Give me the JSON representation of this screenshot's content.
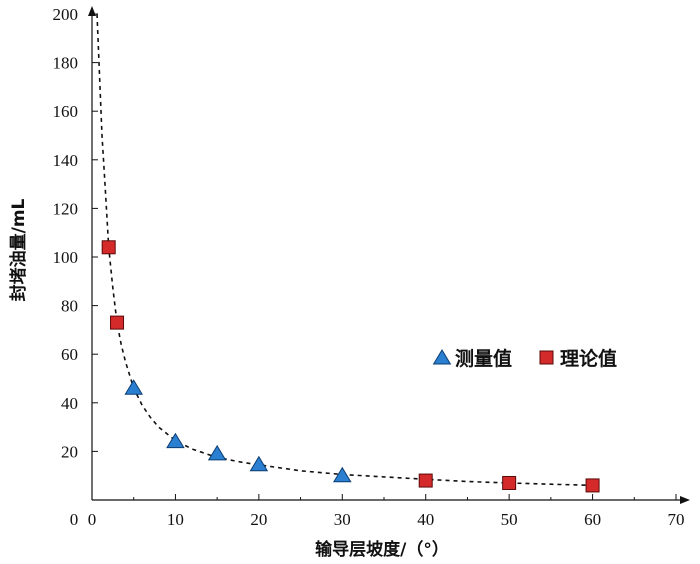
{
  "chart_data": {
    "type": "scatter",
    "xlabel": "输导层坡度/（°）",
    "ylabel": "封堵油量/mL",
    "xlim": [
      0,
      70
    ],
    "ylim": [
      0,
      200
    ],
    "xticks": [
      0,
      10,
      20,
      30,
      40,
      50,
      60,
      70
    ],
    "yticks": [
      20,
      40,
      60,
      80,
      100,
      120,
      140,
      160,
      180,
      200
    ],
    "grid": false,
    "legend_position": "right-middle",
    "series": [
      {
        "name": "测量值",
        "marker": "triangle",
        "color": "#2a7fd0",
        "x": [
          5,
          10,
          15,
          20,
          30
        ],
        "y": [
          46,
          24,
          19,
          14.5,
          10
        ]
      },
      {
        "name": "理论值",
        "marker": "square",
        "color": "#d42a2a",
        "x": [
          2,
          3,
          40,
          50,
          60
        ],
        "y": [
          104,
          73,
          8,
          7,
          6
        ]
      }
    ],
    "trend": {
      "style": "dashed",
      "color": "#111111",
      "x": [
        0.6,
        0.9,
        1.2,
        1.6,
        2,
        2.5,
        3,
        3.5,
        4,
        5,
        6,
        7,
        8,
        10,
        12,
        15,
        18,
        20,
        25,
        30,
        35,
        40,
        45,
        50,
        55,
        60
      ],
      "y": [
        200,
        175,
        150,
        128,
        104,
        87,
        73,
        64,
        57,
        46,
        39,
        34,
        30,
        24.5,
        21,
        17.5,
        15.5,
        14.5,
        12,
        10.5,
        9.5,
        8.5,
        7.6,
        7,
        6.5,
        6
      ]
    }
  }
}
